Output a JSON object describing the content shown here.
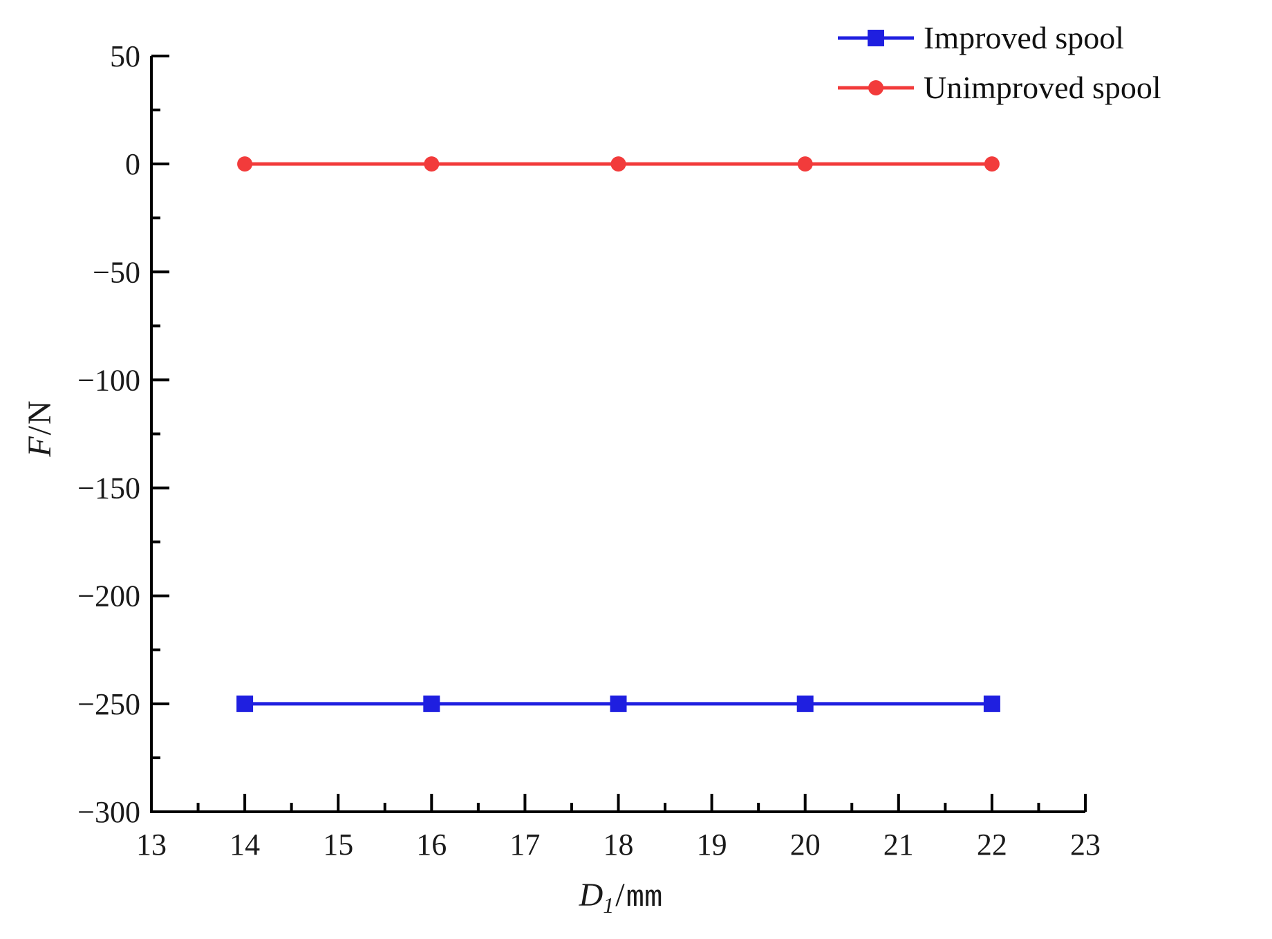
{
  "figure": {
    "background": "#ffffff",
    "text_color": "#1a1a1a"
  },
  "chart_data": {
    "type": "line",
    "title": "",
    "xlabel": {
      "var": "D",
      "sub": "1",
      "sep": "/",
      "unit": "mm"
    },
    "ylabel": {
      "var": "F",
      "sep": "/",
      "unit": "N"
    },
    "x_axis": {
      "min": 13,
      "max": 23,
      "major_step": 1,
      "minor_step": 0.5,
      "major_ticks": [
        13,
        14,
        15,
        16,
        17,
        18,
        19,
        20,
        21,
        22,
        23
      ]
    },
    "y_axis": {
      "min": -300,
      "max": 50,
      "major_step": 50,
      "minor_step": 25,
      "major_ticks": [
        50,
        0,
        -50,
        -100,
        -150,
        -200,
        -250,
        -300
      ]
    },
    "grid": false,
    "legend": {
      "position": "top-right"
    },
    "series": [
      {
        "name": "Improved spool",
        "color": "#1f1fe0",
        "marker": "square",
        "x": [
          14,
          16,
          18,
          20,
          22
        ],
        "y": [
          -250,
          -250,
          -250,
          -250,
          -250
        ]
      },
      {
        "name": "Unimproved spool",
        "color": "#f23b3b",
        "marker": "circle",
        "x": [
          14,
          16,
          18,
          20,
          22
        ],
        "y": [
          0,
          0,
          0,
          0,
          0
        ]
      }
    ]
  }
}
